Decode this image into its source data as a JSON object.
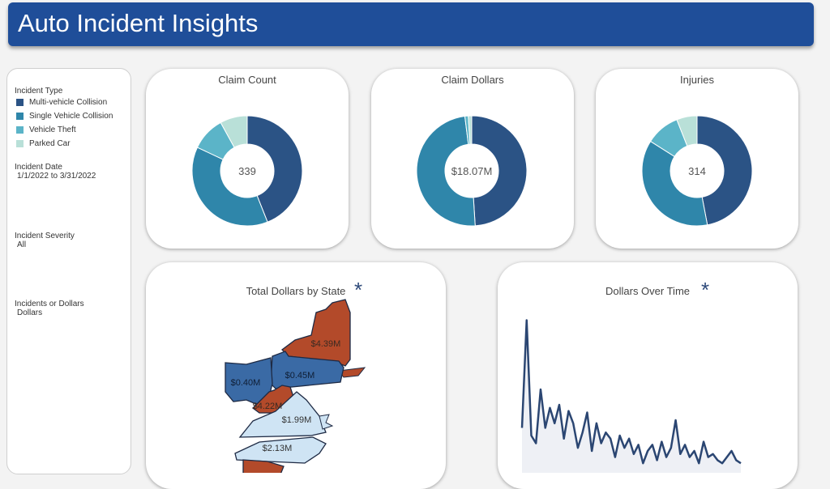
{
  "header": {
    "title": "Auto Incident Insights"
  },
  "colors": {
    "header_bg": "#1f4e99",
    "multi_vehicle": "#2b5385",
    "single_vehicle": "#2f86aa",
    "vehicle_theft": "#5bb4c8",
    "parked_car": "#b9e0d8",
    "state_red": "#b34a2a",
    "state_blue": "#3a6aa5",
    "state_light": "#cfe4f4"
  },
  "filters": {
    "incident_type_label": "Incident Type",
    "legend": [
      {
        "label": "Multi-vehicle Collision",
        "color": "#2b5385"
      },
      {
        "label": "Single Vehicle Collision",
        "color": "#2f86aa"
      },
      {
        "label": "Vehicle Theft",
        "color": "#5bb4c8"
      },
      {
        "label": "Parked Car",
        "color": "#b9e0d8"
      }
    ],
    "incident_date_label": "Incident Date",
    "incident_date_value": "1/1/2022 to 3/31/2022",
    "severity_label": "Incident Severity",
    "severity_value": "All",
    "metric_label": "Incidents or Dollars",
    "metric_value": "Dollars"
  },
  "kpis": [
    {
      "title": "Claim Count",
      "center": "339",
      "slices": [
        0.44,
        0.38,
        0.1,
        0.08
      ]
    },
    {
      "title": "Claim Dollars",
      "center": "$18.07M",
      "slices": [
        0.49,
        0.49,
        0.01,
        0.01
      ]
    },
    {
      "title": "Injuries",
      "center": "314",
      "slices": [
        0.47,
        0.37,
        0.1,
        0.06
      ]
    }
  ],
  "map": {
    "title": "Total Dollars by State",
    "star": "*",
    "labels": [
      "$4.39M",
      "$0.40M",
      "$0.45M",
      "$4.22M",
      "$1.99M",
      "$2.13M"
    ]
  },
  "timeline": {
    "title": "Dollars Over Time",
    "star": "*",
    "series": [
      0.25,
      0.95,
      0.2,
      0.15,
      0.5,
      0.25,
      0.38,
      0.28,
      0.4,
      0.18,
      0.36,
      0.28,
      0.12,
      0.22,
      0.35,
      0.1,
      0.28,
      0.15,
      0.22,
      0.18,
      0.06,
      0.2,
      0.12,
      0.18,
      0.08,
      0.14,
      0.02,
      0.1,
      0.14,
      0.04,
      0.16,
      0.06,
      0.12,
      0.3,
      0.08,
      0.14,
      0.06,
      0.1,
      0.02,
      0.16,
      0.06,
      0.08,
      0.04,
      0.02,
      0.06,
      0.1,
      0.04,
      0.02
    ]
  }
}
